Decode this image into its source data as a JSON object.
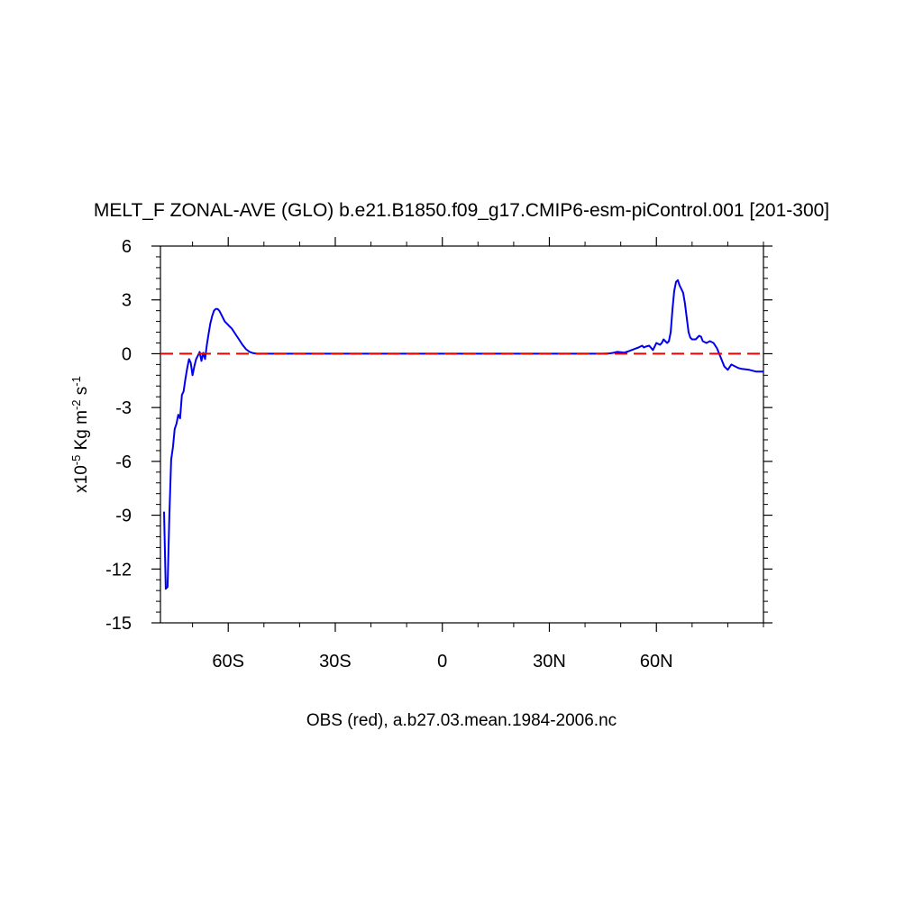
{
  "chart_data": {
    "type": "line",
    "title": "MELT_F ZONAL-AVE (GLO) b.e21.B1850.f09_g17.CMIP6-esm-piControl.001 [201-300]",
    "xlabel": "OBS (red), a.b27.03.mean.1984-2006.nc",
    "ylabel": {
      "prefix": "x10",
      "exp1": "-5",
      "mid": " Kg m",
      "exp2": "-2",
      "mid2": " s",
      "exp3": "-1"
    },
    "xlim": [
      -79,
      90
    ],
    "ylim": [
      -15,
      6
    ],
    "x_ticks": [
      {
        "value": -60,
        "label": "60S"
      },
      {
        "value": -30,
        "label": "30S"
      },
      {
        "value": 0,
        "label": "0"
      },
      {
        "value": 30,
        "label": "30N"
      },
      {
        "value": 60,
        "label": "60N"
      }
    ],
    "x_minor_ticks": [
      -70,
      -50,
      -40,
      -20,
      -10,
      10,
      20,
      40,
      50,
      70,
      80,
      90
    ],
    "y_ticks": [
      {
        "value": 6,
        "label": "6"
      },
      {
        "value": 3,
        "label": "3"
      },
      {
        "value": 0,
        "label": "0"
      },
      {
        "value": -3,
        "label": "-3"
      },
      {
        "value": -6,
        "label": "-6"
      },
      {
        "value": -9,
        "label": "-9"
      },
      {
        "value": -12,
        "label": "-12"
      },
      {
        "value": -15,
        "label": "-15"
      }
    ],
    "y_minor_step": 0.6,
    "grid": false,
    "series": [
      {
        "color": "#0000ee",
        "style": "solid",
        "x": [
          -78.0,
          -77.5,
          -77.0,
          -76.5,
          -76.0,
          -75.5,
          -75.0,
          -74.5,
          -74.0,
          -73.5,
          -73.0,
          -72.5,
          -72.0,
          -71.5,
          -71.0,
          -70.5,
          -70.0,
          -69.5,
          -69.0,
          -68.5,
          -68.0,
          -67.5,
          -67.0,
          -66.5,
          -66.0,
          -65.5,
          -65.0,
          -64.5,
          -64.0,
          -63.5,
          -63.0,
          -62.5,
          -62.0,
          -61.5,
          -61.0,
          -60.0,
          -59.0,
          -58.0,
          -57.0,
          -56.0,
          -55.0,
          -54.0,
          -53.0,
          -52.0,
          -51.0,
          -50.0,
          -40.0,
          -30.0,
          -20.0,
          -10.0,
          0.0,
          10.0,
          20.0,
          30.0,
          40.0,
          45.0,
          47.0,
          48.0,
          49.0,
          50.0,
          51.0,
          52.0,
          53.0,
          54.0,
          55.0,
          55.5,
          56.0,
          56.5,
          57.0,
          58.0,
          59.0,
          59.5,
          60.0,
          61.0,
          61.5,
          62.0,
          62.5,
          63.0,
          63.5,
          64.0,
          64.5,
          65.0,
          65.5,
          66.0,
          66.5,
          67.0,
          67.5,
          68.0,
          68.5,
          69.0,
          69.5,
          70.0,
          71.0,
          72.0,
          72.5,
          73.0,
          74.0,
          75.0,
          76.0,
          77.0,
          78.0,
          79.0,
          80.0,
          81.0,
          82.0,
          83.0,
          84.0,
          86.0,
          88.0,
          90.0
        ],
        "y": [
          -8.8,
          -13.1,
          -13.0,
          -9.0,
          -5.9,
          -5.2,
          -4.2,
          -3.9,
          -3.4,
          -3.6,
          -2.3,
          -2.1,
          -1.4,
          -0.8,
          -0.3,
          -0.5,
          -1.2,
          -0.7,
          -0.3,
          -0.1,
          0.1,
          -0.4,
          0.05,
          -0.3,
          0.5,
          1.1,
          1.7,
          2.1,
          2.4,
          2.5,
          2.5,
          2.4,
          2.2,
          2.0,
          1.8,
          1.6,
          1.4,
          1.1,
          0.8,
          0.5,
          0.25,
          0.1,
          0.03,
          0.01,
          0.0,
          0.0,
          0.0,
          0.0,
          0.0,
          0.0,
          0.0,
          0.0,
          0.0,
          0.0,
          0.0,
          0.0,
          0.02,
          0.05,
          0.1,
          0.08,
          0.06,
          0.12,
          0.2,
          0.28,
          0.35,
          0.4,
          0.45,
          0.35,
          0.4,
          0.45,
          0.2,
          0.4,
          0.6,
          0.5,
          0.6,
          0.8,
          0.7,
          0.6,
          0.7,
          1.2,
          2.5,
          3.5,
          4.0,
          4.1,
          3.8,
          3.6,
          3.4,
          2.8,
          2.0,
          1.2,
          0.9,
          0.8,
          0.8,
          1.0,
          0.95,
          0.7,
          0.6,
          0.7,
          0.6,
          0.3,
          -0.2,
          -0.7,
          -0.9,
          -0.6,
          -0.7,
          -0.8,
          -0.85,
          -0.9,
          -1.0,
          -1.0
        ]
      },
      {
        "color": "#ee0000",
        "style": "dashed",
        "x": [
          -79,
          90
        ],
        "y": [
          0,
          0
        ]
      }
    ]
  }
}
